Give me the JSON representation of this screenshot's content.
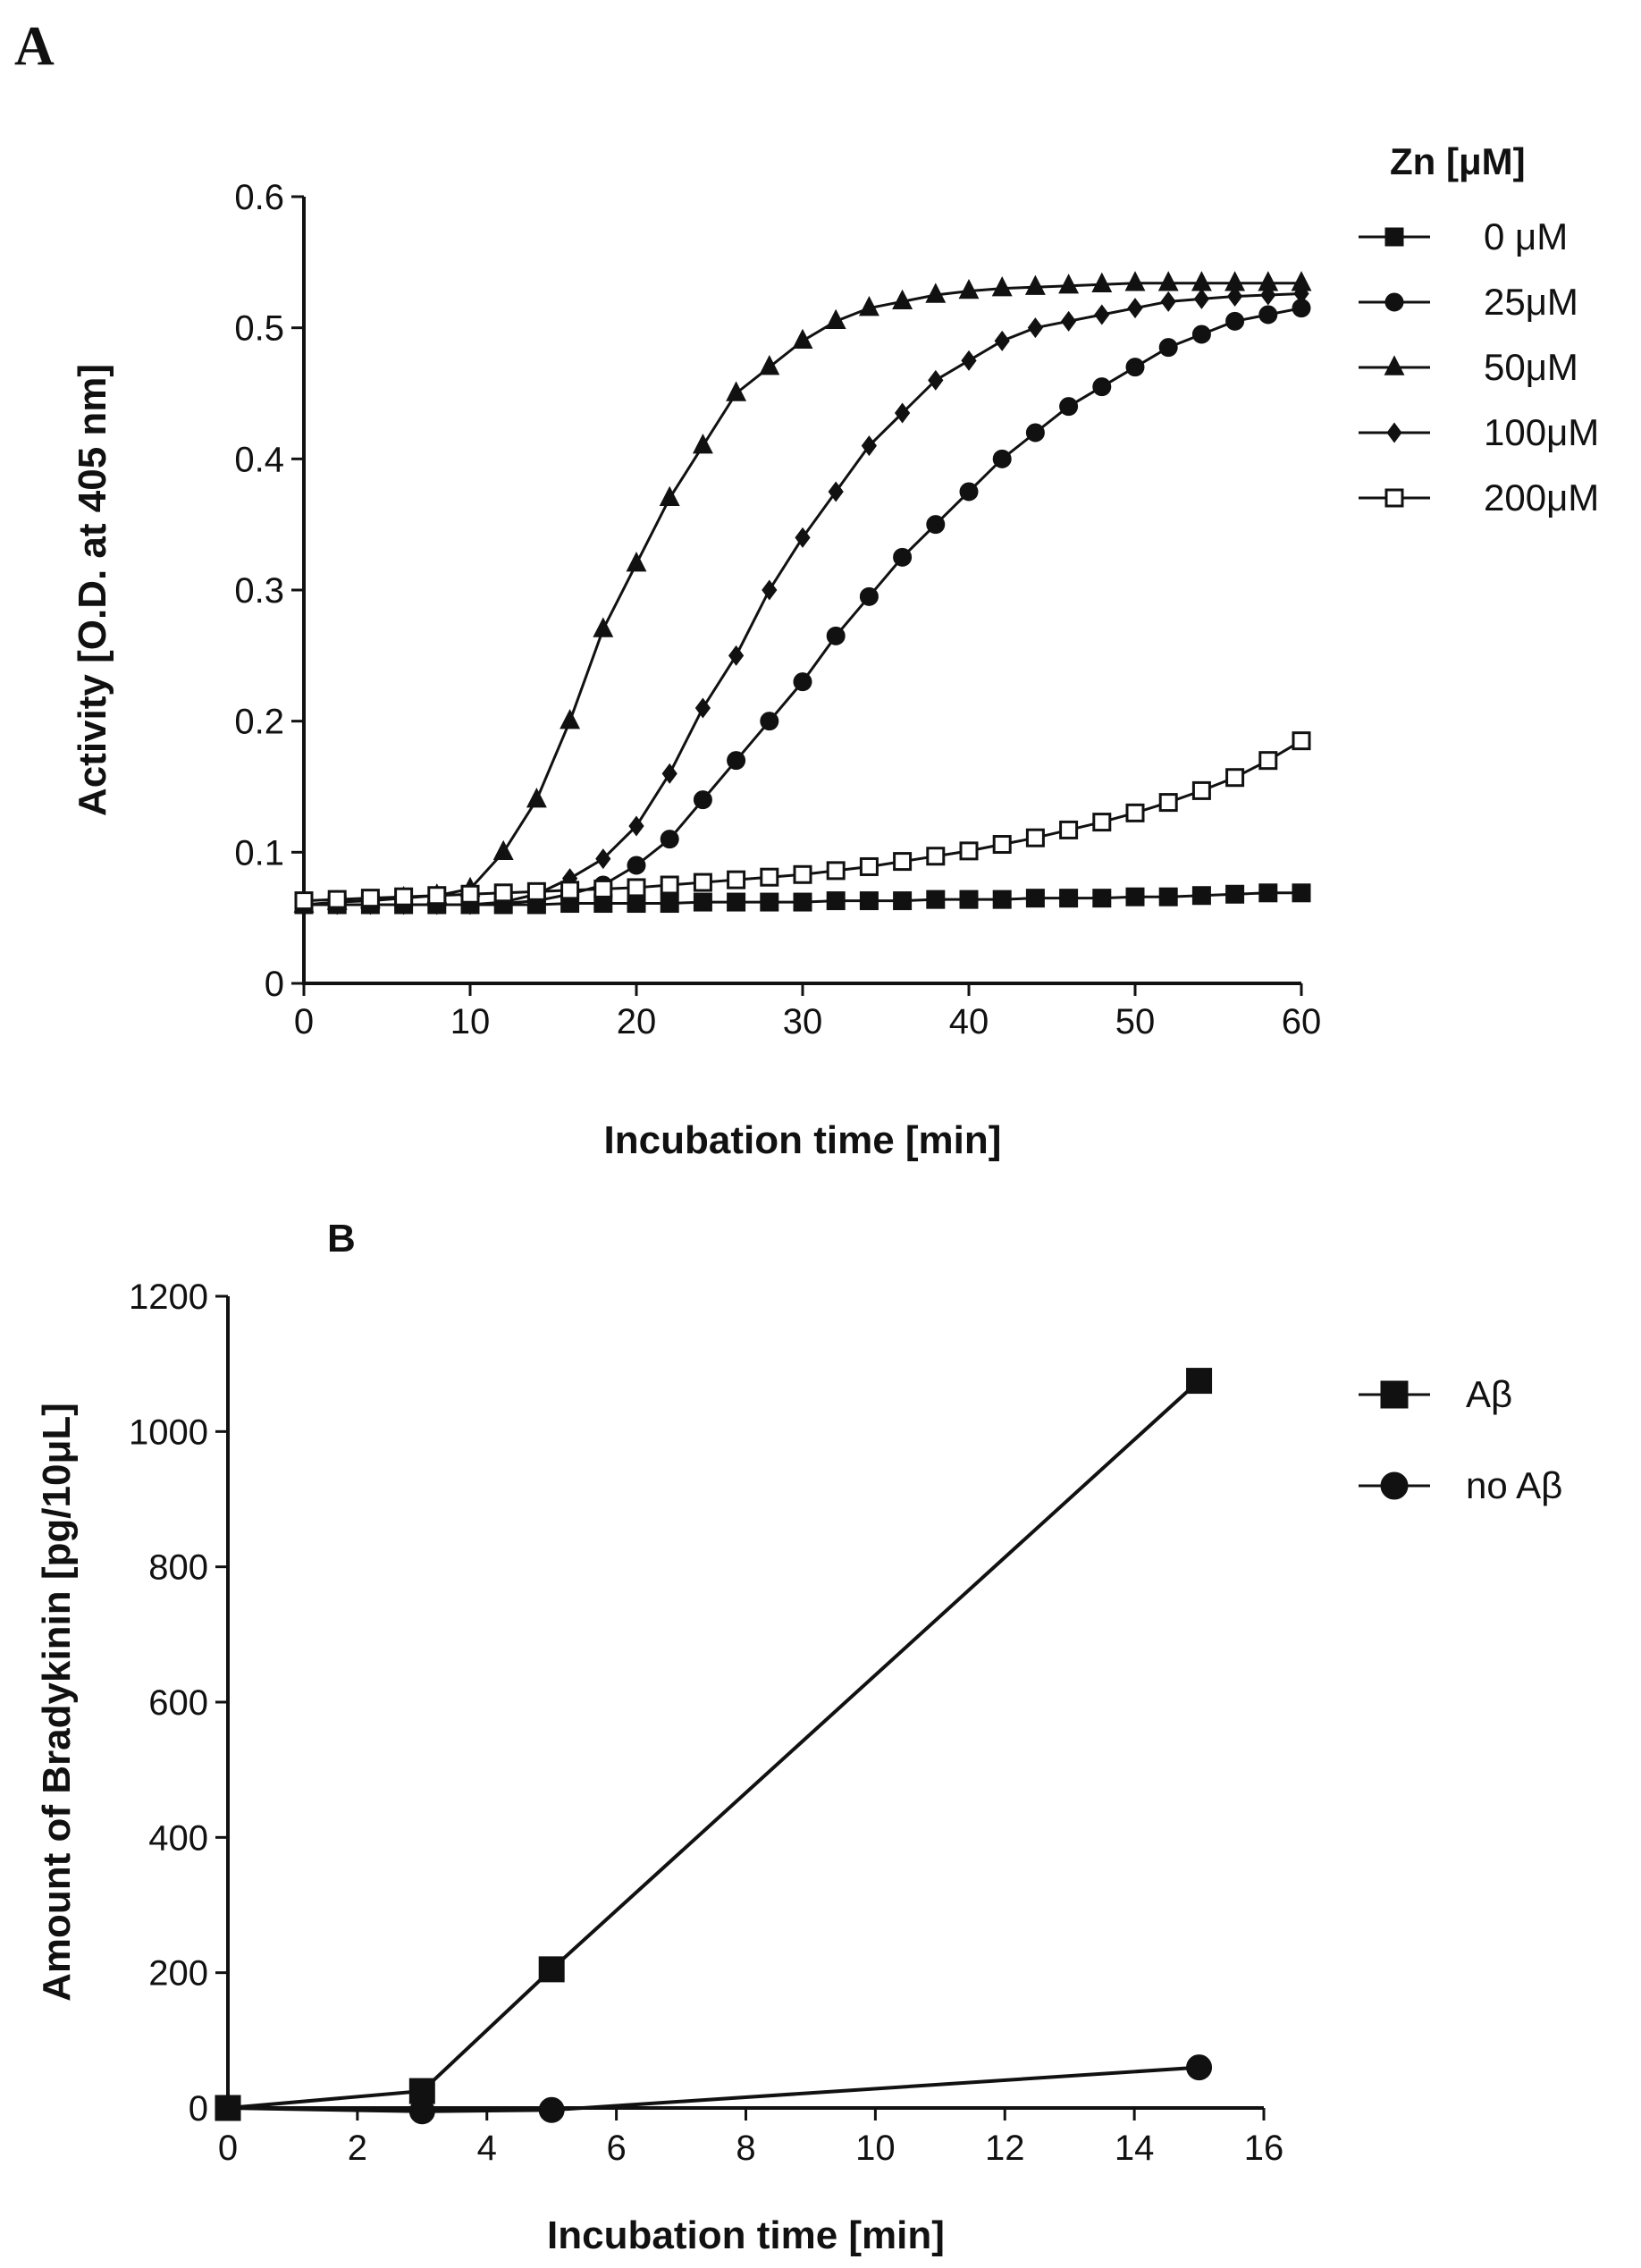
{
  "chart_data": [
    {
      "panel": "A",
      "type": "line",
      "title": "",
      "xlabel": "Incubation time [min]",
      "ylabel": "Activity [O.D. at 405 nm]",
      "xlim": [
        0,
        60
      ],
      "ylim": [
        0,
        0.6
      ],
      "xticks": [
        0,
        10,
        20,
        30,
        40,
        50,
        60
      ],
      "xtick_labels": [
        "0",
        "10",
        "20",
        "30",
        "40",
        "50",
        "60"
      ],
      "yticks": [
        0,
        0.1,
        0.2,
        0.3,
        0.4,
        0.5,
        0.6
      ],
      "ytick_labels": [
        "0",
        "0.1",
        "0.2",
        "0.3",
        "0.4",
        "0.5",
        "0.6"
      ],
      "legend_title": "Zn [μM]",
      "legend_position": "right",
      "grid": false,
      "x": [
        0,
        2,
        4,
        6,
        8,
        10,
        12,
        14,
        16,
        18,
        20,
        22,
        24,
        26,
        28,
        30,
        32,
        34,
        36,
        38,
        40,
        42,
        44,
        46,
        48,
        50,
        52,
        54,
        56,
        58,
        60
      ],
      "series": [
        {
          "name": "0 μM",
          "marker": "square-filled",
          "color": "#111111",
          "values": [
            0.06,
            0.06,
            0.06,
            0.06,
            0.06,
            0.06,
            0.06,
            0.06,
            0.061,
            0.061,
            0.061,
            0.061,
            0.062,
            0.062,
            0.062,
            0.062,
            0.063,
            0.063,
            0.063,
            0.064,
            0.064,
            0.064,
            0.065,
            0.065,
            0.065,
            0.066,
            0.066,
            0.067,
            0.068,
            0.069,
            0.069
          ]
        },
        {
          "name": "25μM",
          "marker": "circle-filled",
          "color": "#111111",
          "values": [
            0.06,
            0.06,
            0.06,
            0.06,
            0.06,
            0.06,
            0.061,
            0.063,
            0.068,
            0.075,
            0.09,
            0.11,
            0.14,
            0.17,
            0.2,
            0.23,
            0.265,
            0.295,
            0.325,
            0.35,
            0.375,
            0.4,
            0.42,
            0.44,
            0.455,
            0.47,
            0.485,
            0.495,
            0.505,
            0.51,
            0.515
          ]
        },
        {
          "name": "50μM",
          "marker": "triangle-filled",
          "color": "#111111",
          "values": [
            0.06,
            0.062,
            0.063,
            0.065,
            0.067,
            0.072,
            0.1,
            0.14,
            0.2,
            0.27,
            0.32,
            0.37,
            0.41,
            0.45,
            0.47,
            0.49,
            0.505,
            0.515,
            0.52,
            0.525,
            0.528,
            0.53,
            0.531,
            0.532,
            0.533,
            0.534,
            0.534,
            0.534,
            0.534,
            0.534,
            0.534
          ]
        },
        {
          "name": "100μM",
          "marker": "diamond-filled",
          "color": "#111111",
          "values": [
            0.06,
            0.06,
            0.06,
            0.06,
            0.06,
            0.06,
            0.062,
            0.068,
            0.08,
            0.095,
            0.12,
            0.16,
            0.21,
            0.25,
            0.3,
            0.34,
            0.375,
            0.41,
            0.435,
            0.46,
            0.475,
            0.49,
            0.5,
            0.505,
            0.51,
            0.515,
            0.52,
            0.522,
            0.524,
            0.525,
            0.526
          ]
        },
        {
          "name": "200μM",
          "marker": "square-open",
          "color": "#111111",
          "values": [
            0.063,
            0.064,
            0.065,
            0.066,
            0.067,
            0.068,
            0.069,
            0.07,
            0.071,
            0.072,
            0.073,
            0.075,
            0.077,
            0.079,
            0.081,
            0.083,
            0.086,
            0.089,
            0.093,
            0.097,
            0.101,
            0.106,
            0.111,
            0.117,
            0.123,
            0.13,
            0.138,
            0.147,
            0.157,
            0.17,
            0.185
          ]
        }
      ]
    },
    {
      "panel": "B",
      "type": "line",
      "title": "",
      "xlabel": "Incubation time [min]",
      "ylabel": "Amount of Bradykinin [pg/10μL]",
      "xlim": [
        0,
        16
      ],
      "ylim": [
        0,
        1200
      ],
      "xticks": [
        0,
        2,
        4,
        6,
        8,
        10,
        12,
        14,
        16
      ],
      "xtick_labels": [
        "0",
        "2",
        "4",
        "6",
        "8",
        "10",
        "12",
        "14",
        "16"
      ],
      "yticks": [
        0,
        200,
        400,
        600,
        800,
        1000,
        1200
      ],
      "ytick_labels": [
        "0",
        "200",
        "400",
        "600",
        "800",
        "1000",
        "1200"
      ],
      "legend_position": "right",
      "grid": false,
      "series": [
        {
          "name": "Aβ",
          "marker": "square-filled",
          "color": "#111111",
          "x": [
            0,
            3,
            5,
            15
          ],
          "values": [
            0,
            25,
            205,
            1075
          ]
        },
        {
          "name": "no Aβ",
          "marker": "circle-filled",
          "color": "#111111",
          "x": [
            0,
            3,
            5,
            15
          ],
          "values": [
            0,
            -5,
            -3,
            60
          ]
        }
      ]
    }
  ],
  "labels": {
    "panel_a": "A",
    "panel_b": "B"
  }
}
